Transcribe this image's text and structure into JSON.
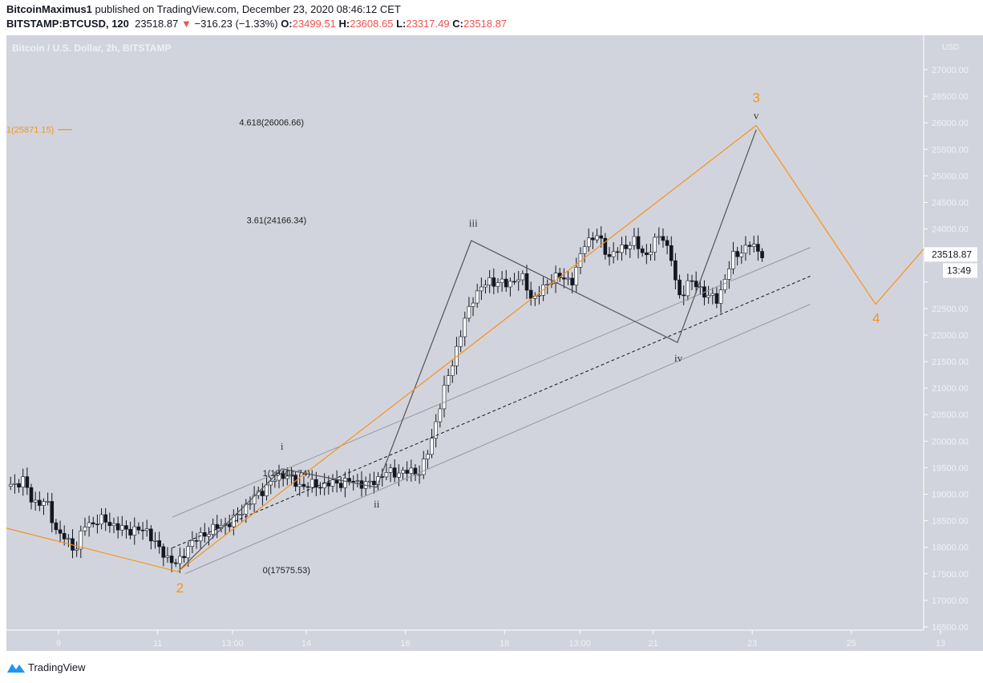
{
  "header": {
    "author": "BitcoinMaximus1",
    "published": "published on TradingView.com, December 23, 2020 08:46:12 CET",
    "symbol": "BITSTAMP:BTCUSD, 120",
    "last": "23518.87",
    "change": "−316.23 (−1.33%)",
    "o_label": "O:",
    "o": "23499.51",
    "h_label": "H:",
    "h": "23608.65",
    "l_label": "L:",
    "l": "23317.49",
    "c_label": "C:",
    "c": "23518.87"
  },
  "footer": {
    "brand": "TradingView",
    "icon": "tradingview-logo-icon"
  },
  "chart_data": {
    "type": "candlestick",
    "title": "Bitcoin / U.S. Dollar, 2h, BITSTAMP",
    "currency": "USD",
    "ylim": [
      16500,
      27000
    ],
    "y_ticks": [
      "16500.00",
      "17000.00",
      "17500.00",
      "18000.00",
      "18500.00",
      "19000.00",
      "19500.00",
      "20000.00",
      "20500.00",
      "21000.00",
      "21500.00",
      "22000.00",
      "22500.00",
      "23000.00",
      "23500.00",
      "24000.00",
      "24500.00",
      "25000.00",
      "25500.00",
      "26000.00",
      "26500.00",
      "27000.00"
    ],
    "x_ticks": [
      {
        "day": 9,
        "label": "9"
      },
      {
        "day": 11,
        "label": "11"
      },
      {
        "day": 12.51,
        "label": "13:00"
      },
      {
        "day": 14,
        "label": "14"
      },
      {
        "day": 16,
        "label": "16"
      },
      {
        "day": 18,
        "label": "18"
      },
      {
        "day": 19.52,
        "label": "13:00"
      },
      {
        "day": 21,
        "label": "21"
      },
      {
        "day": 23,
        "label": "23"
      },
      {
        "day": 25,
        "label": "25"
      },
      {
        "day": 26.8,
        "label": "13"
      }
    ],
    "xlim_days": [
      7.9,
      26.6
    ],
    "price_path": [
      [
        7.95,
        19150
      ],
      [
        8.3,
        19250
      ],
      [
        8.47,
        18870
      ],
      [
        8.79,
        18800
      ],
      [
        8.95,
        18310
      ],
      [
        9.36,
        17965
      ],
      [
        9.52,
        18420
      ],
      [
        9.92,
        18520
      ],
      [
        10.25,
        18340
      ],
      [
        10.81,
        18310
      ],
      [
        11.05,
        17920
      ],
      [
        11.41,
        17660
      ],
      [
        11.62,
        18040
      ],
      [
        12.03,
        18310
      ],
      [
        12.51,
        18490
      ],
      [
        12.83,
        18830
      ],
      [
        13.32,
        19250
      ],
      [
        13.56,
        19400
      ],
      [
        13.81,
        19170
      ],
      [
        14.29,
        19170
      ],
      [
        14.94,
        19250
      ],
      [
        15.26,
        19170
      ],
      [
        15.58,
        19400
      ],
      [
        16.31,
        19430
      ],
      [
        16.48,
        19850
      ],
      [
        16.72,
        20760
      ],
      [
        16.96,
        21520
      ],
      [
        17.2,
        22270
      ],
      [
        17.37,
        22720
      ],
      [
        17.69,
        23030
      ],
      [
        18.01,
        22950
      ],
      [
        18.34,
        23100
      ],
      [
        18.58,
        22650
      ],
      [
        18.98,
        23100
      ],
      [
        19.39,
        23030
      ],
      [
        19.63,
        23780
      ],
      [
        19.87,
        23860
      ],
      [
        20.12,
        23480
      ],
      [
        20.6,
        23780
      ],
      [
        20.84,
        23480
      ],
      [
        21.17,
        23930
      ],
      [
        21.41,
        23330
      ],
      [
        21.49,
        22650
      ],
      [
        21.73,
        23030
      ],
      [
        22.14,
        22720
      ],
      [
        22.3,
        22650
      ],
      [
        22.46,
        23100
      ],
      [
        22.62,
        23480
      ],
      [
        22.95,
        23700
      ],
      [
        23.24,
        23519
      ]
    ],
    "last_price_label": "23518.87",
    "countdown": "13:49",
    "colors": {
      "up": "#ffffff",
      "down": "#131722",
      "orange": "#f7931a",
      "wave": "#555555",
      "channel": "#9598a1",
      "bg": "#d1d4dc"
    },
    "orange_wave": {
      "points": [
        [
          7.95,
          18360
        ],
        [
          11.41,
          17540
        ],
        [
          23.08,
          25950
        ],
        [
          25.49,
          22580
        ],
        [
          26.46,
          23620
        ]
      ],
      "labels": [
        {
          "text": "2",
          "day": 11.45,
          "price": 17150
        },
        {
          "text": "3",
          "day": 23.08,
          "price": 26270
        },
        {
          "text": "4",
          "day": 25.5,
          "price": 22230
        }
      ]
    },
    "target_line": {
      "label": "1(25871.15)",
      "price": 25871.15
    },
    "sub_wave": {
      "points": [
        [
          11.41,
          17540
        ],
        [
          13.51,
          19480
        ],
        [
          15.42,
          19130
        ],
        [
          17.33,
          23780
        ],
        [
          21.49,
          21860
        ],
        [
          23.08,
          25870
        ]
      ],
      "labels": [
        {
          "text": "i",
          "day": 13.51,
          "price": 19750
        },
        {
          "text": "ii",
          "day": 15.42,
          "price": 18750
        },
        {
          "text": "iii",
          "day": 17.37,
          "price": 24050
        },
        {
          "text": "iv",
          "day": 21.51,
          "price": 21500
        },
        {
          "text": "v",
          "day": 23.08,
          "price": 26100
        }
      ]
    },
    "fib_labels": [
      {
        "text": "4.618(26006.66)",
        "day": 13.3,
        "price": 26006.66
      },
      {
        "text": "3.61(24166.34)",
        "day": 13.4,
        "price": 24166.34
      },
      {
        "text": "1(19401.74)",
        "day": 13.6,
        "price": 19401.74
      },
      {
        "text": "0(17575.53)",
        "day": 13.6,
        "price": 17575.53
      }
    ],
    "channel": {
      "upper": [
        [
          11.3,
          18570
        ],
        [
          24.17,
          23650
        ]
      ],
      "middle": [
        [
          11.3,
          17990
        ],
        [
          24.17,
          23110
        ]
      ],
      "lower": [
        [
          11.55,
          17500
        ],
        [
          24.17,
          22580
        ]
      ]
    }
  }
}
